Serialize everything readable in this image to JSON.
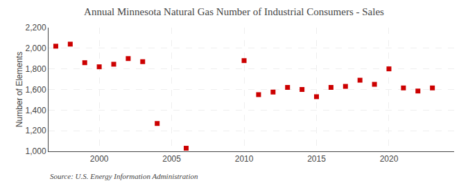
{
  "chart_data": {
    "type": "scatter",
    "title": "Annual Minnesota Natural Gas Number of Industrial Consumers - Sales",
    "ylabel": "Number of Elements",
    "annotations": [
      "Source: U.S. Energy Information Administration"
    ],
    "x": [
      1997,
      1998,
      1999,
      2000,
      2001,
      2002,
      2003,
      2004,
      2006,
      2010,
      2011,
      2012,
      2013,
      2014,
      2015,
      2016,
      2017,
      2018,
      2019,
      2020,
      2021,
      2022,
      2023
    ],
    "values": [
      2020,
      2040,
      1860,
      1820,
      1845,
      1900,
      1870,
      1270,
      1030,
      1880,
      1550,
      1575,
      1620,
      1600,
      1530,
      1620,
      1630,
      1690,
      1650,
      1800,
      1615,
      1585,
      1615
    ],
    "color": "#cc0000",
    "marker": "square",
    "xlim": [
      1996.5,
      2024.5
    ],
    "xticks": [
      2000,
      2005,
      2010,
      2015,
      2020
    ],
    "ylim": [
      1000,
      2200
    ],
    "yticks": [
      {
        "value": 1000,
        "label": "1,000"
      },
      {
        "value": 1200,
        "label": "1,200"
      },
      {
        "value": 1400,
        "label": "1,400"
      },
      {
        "value": 1600,
        "label": "1,600"
      },
      {
        "value": 1800,
        "label": "1,800"
      },
      {
        "value": 2000,
        "label": "2,000"
      },
      {
        "value": 2200,
        "label": "2,200"
      }
    ],
    "grid": true
  }
}
